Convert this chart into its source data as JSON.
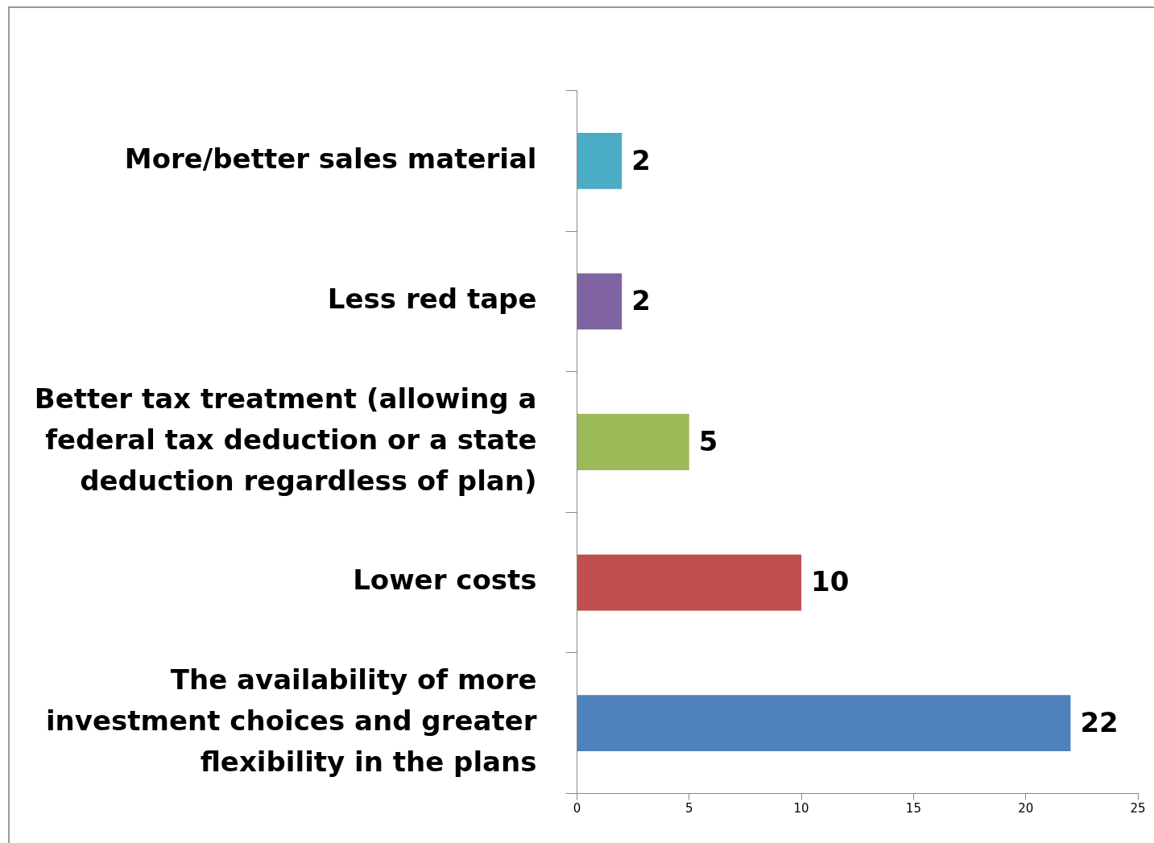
{
  "chart_data": {
    "type": "bar",
    "orientation": "horizontal",
    "categories": [
      "More/better sales material",
      "Less red tape",
      "Better tax treatment (allowing a federal tax deduction or a state deduction regardless of plan)",
      "Lower costs",
      "The availability of more investment choices and greater flexibility in the plans"
    ],
    "values": [
      2,
      2,
      5,
      10,
      22
    ],
    "colors": [
      "#4bacc6",
      "#8064a2",
      "#9bbb59",
      "#c0504d",
      "#4f81bd"
    ],
    "xlim": [
      0,
      25
    ],
    "xticks": [
      0,
      5,
      10,
      15,
      20,
      25
    ],
    "grid": false,
    "legend": false,
    "data_labels": true
  }
}
